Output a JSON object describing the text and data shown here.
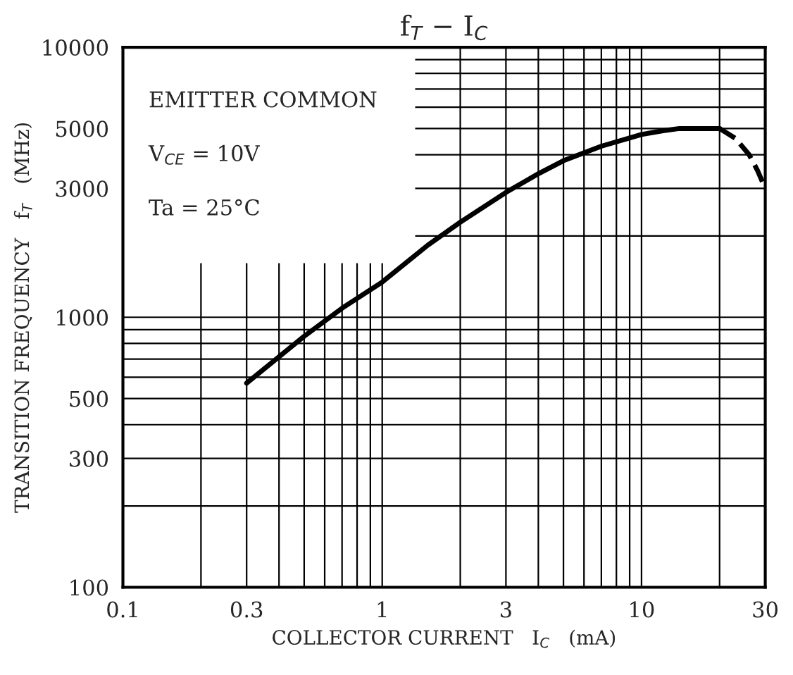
{
  "chart_data": {
    "type": "line",
    "title": "f$_{T}$ − I$_{C}$",
    "xlabel": "COLLECTOR CURRENT   I$_{C}$   (mA)",
    "ylabel": "TRANSITION FREQUENCY   f$_{T}$   (MHz)",
    "annotations": [
      "EMITTER COMMON",
      "V$_{CE}$ = 10V",
      "Ta = 25°C"
    ],
    "log": "xy",
    "xlim": [
      0.1,
      30
    ],
    "ylim": [
      100,
      10000
    ],
    "xticks": [
      0.1,
      0.3,
      1,
      3,
      10,
      30
    ],
    "yticks": [
      100,
      300,
      500,
      1000,
      3000,
      5000,
      10000
    ],
    "grid": true,
    "series": [
      {
        "color": "#000000",
        "line_style": "solid",
        "x": [
          0.3,
          0.5,
          0.7,
          1,
          1.5,
          2,
          3,
          4,
          5,
          7,
          10,
          12,
          14,
          17,
          20
        ],
        "values": [
          570,
          850,
          1080,
          1350,
          1850,
          2250,
          2900,
          3400,
          3800,
          4300,
          4750,
          4900,
          5000,
          5000,
          5000
        ]
      },
      {
        "color": "#000000",
        "line_style": "dashed",
        "x": [
          20,
          23,
          26,
          28,
          30
        ],
        "values": [
          5000,
          4600,
          4000,
          3500,
          3000
        ]
      }
    ]
  }
}
